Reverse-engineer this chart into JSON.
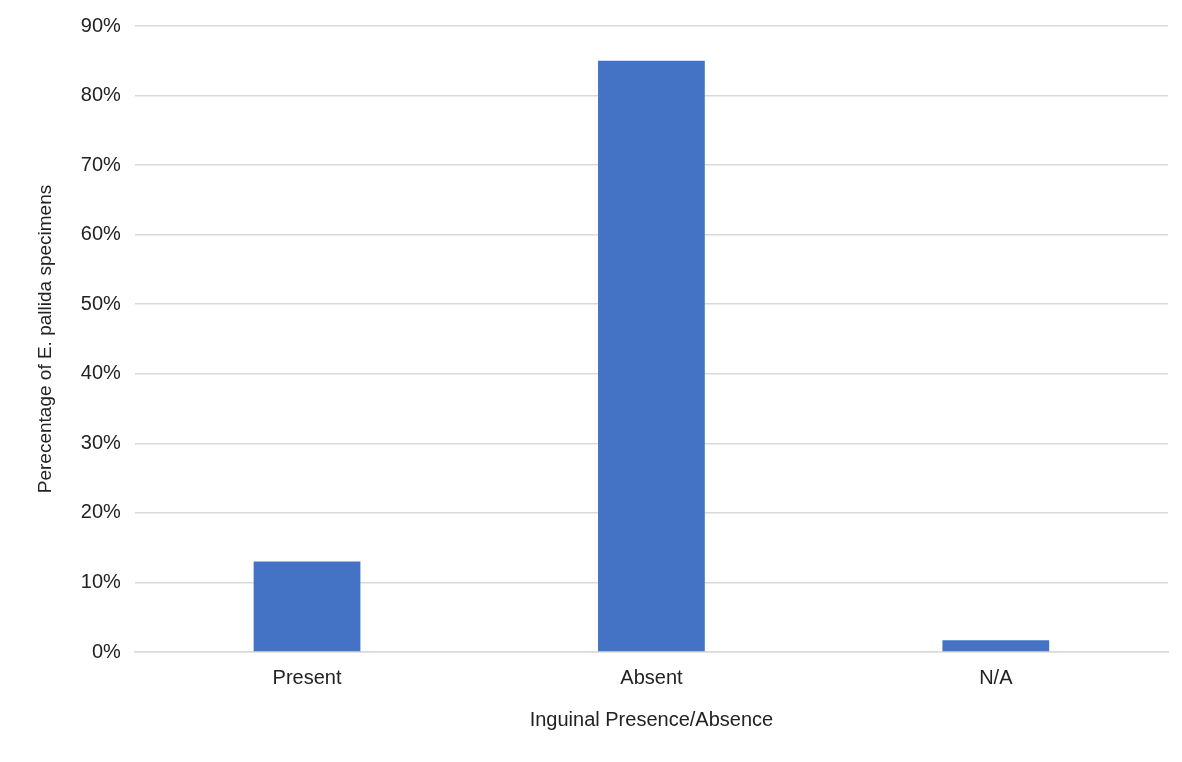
{
  "chart_data": {
    "type": "bar",
    "xlabel": "Inguinal Presence/Absence",
    "ylabel": "Perecentage of E. pallida specimens",
    "categories": [
      "Present",
      "Absent",
      "N/A"
    ],
    "values": [
      13,
      85,
      1.7
    ],
    "color": "#4472c4",
    "ylim": [
      0,
      90
    ],
    "yticks": [
      {
        "value": 0,
        "label": "0%"
      },
      {
        "value": 10,
        "label": "10%"
      },
      {
        "value": 20,
        "label": "20%"
      },
      {
        "value": 30,
        "label": "30%"
      },
      {
        "value": 40,
        "label": "40%"
      },
      {
        "value": 50,
        "label": "50%"
      },
      {
        "value": 60,
        "label": "60%"
      },
      {
        "value": 70,
        "label": "70%"
      },
      {
        "value": 80,
        "label": "80%"
      },
      {
        "value": 90,
        "label": "90%"
      }
    ],
    "grid": "y",
    "legend": false
  }
}
